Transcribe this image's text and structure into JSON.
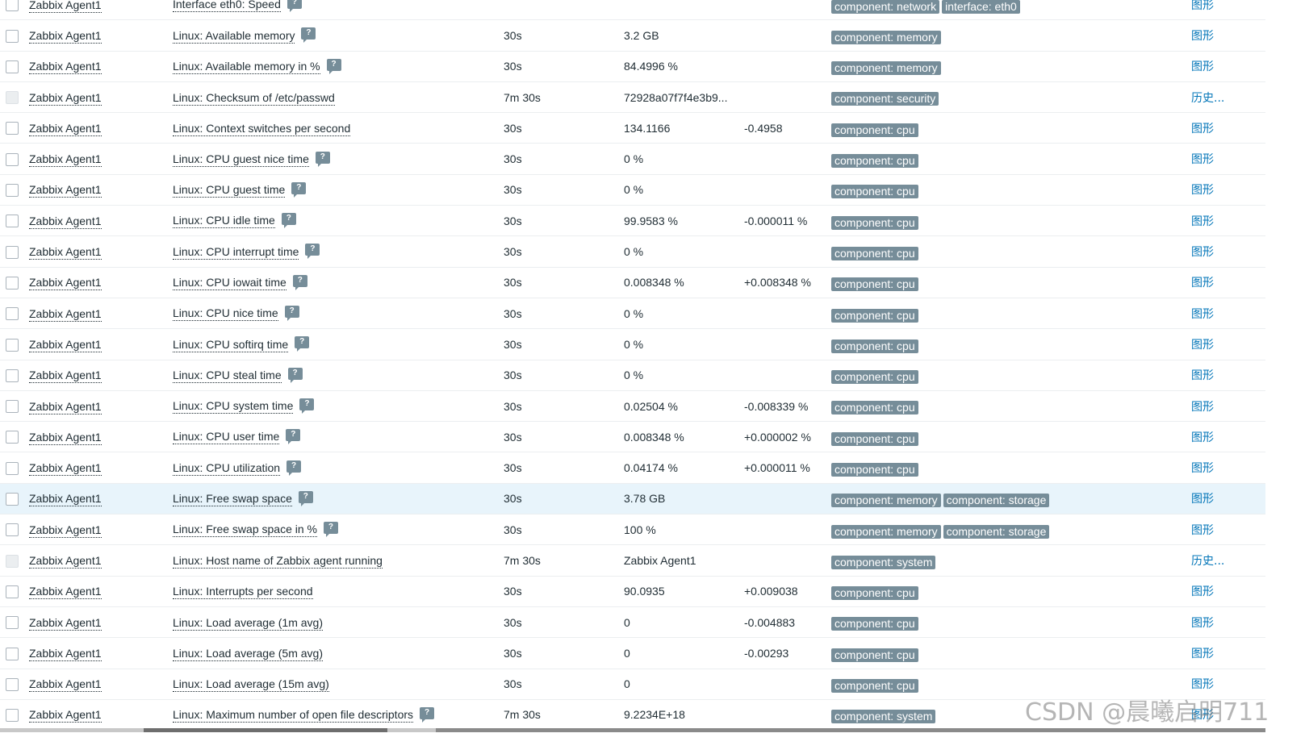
{
  "rows": [
    {
      "host": "Zabbix Agent1",
      "name": "Interface eth0: Speed",
      "hint": true,
      "interval": "",
      "last_value": "",
      "change": "",
      "tags": [
        "component: network",
        "interface: eth0"
      ],
      "action": "图形",
      "disabled": false,
      "highlight": false
    },
    {
      "host": "Zabbix Agent1",
      "name": "Linux: Available memory",
      "hint": true,
      "interval": "30s",
      "last_value": "3.2 GB",
      "change": "",
      "tags": [
        "component: memory"
      ],
      "action": "图形",
      "disabled": false,
      "highlight": false
    },
    {
      "host": "Zabbix Agent1",
      "name": "Linux: Available memory in %",
      "hint": true,
      "interval": "30s",
      "last_value": "84.4996 %",
      "change": "",
      "tags": [
        "component: memory"
      ],
      "action": "图形",
      "disabled": false,
      "highlight": false
    },
    {
      "host": "Zabbix Agent1",
      "name": "Linux: Checksum of /etc/passwd",
      "hint": false,
      "interval": "7m 30s",
      "last_value": "72928a07f7f4e3b9...",
      "change": "",
      "tags": [
        "component: security"
      ],
      "action": "历史...",
      "disabled": true,
      "highlight": false
    },
    {
      "host": "Zabbix Agent1",
      "name": "Linux: Context switches per second",
      "hint": false,
      "interval": "30s",
      "last_value": "134.1166",
      "change": "-0.4958",
      "tags": [
        "component: cpu"
      ],
      "action": "图形",
      "disabled": false,
      "highlight": false
    },
    {
      "host": "Zabbix Agent1",
      "name": "Linux: CPU guest nice time",
      "hint": true,
      "interval": "30s",
      "last_value": "0 %",
      "change": "",
      "tags": [
        "component: cpu"
      ],
      "action": "图形",
      "disabled": false,
      "highlight": false
    },
    {
      "host": "Zabbix Agent1",
      "name": "Linux: CPU guest time",
      "hint": true,
      "interval": "30s",
      "last_value": "0 %",
      "change": "",
      "tags": [
        "component: cpu"
      ],
      "action": "图形",
      "disabled": false,
      "highlight": false
    },
    {
      "host": "Zabbix Agent1",
      "name": "Linux: CPU idle time",
      "hint": true,
      "interval": "30s",
      "last_value": "99.9583 %",
      "change": "-0.000011 %",
      "tags": [
        "component: cpu"
      ],
      "action": "图形",
      "disabled": false,
      "highlight": false
    },
    {
      "host": "Zabbix Agent1",
      "name": "Linux: CPU interrupt time",
      "hint": true,
      "interval": "30s",
      "last_value": "0 %",
      "change": "",
      "tags": [
        "component: cpu"
      ],
      "action": "图形",
      "disabled": false,
      "highlight": false
    },
    {
      "host": "Zabbix Agent1",
      "name": "Linux: CPU iowait time",
      "hint": true,
      "interval": "30s",
      "last_value": "0.008348 %",
      "change": "+0.008348 %",
      "tags": [
        "component: cpu"
      ],
      "action": "图形",
      "disabled": false,
      "highlight": false
    },
    {
      "host": "Zabbix Agent1",
      "name": "Linux: CPU nice time",
      "hint": true,
      "interval": "30s",
      "last_value": "0 %",
      "change": "",
      "tags": [
        "component: cpu"
      ],
      "action": "图形",
      "disabled": false,
      "highlight": false
    },
    {
      "host": "Zabbix Agent1",
      "name": "Linux: CPU softirq time",
      "hint": true,
      "interval": "30s",
      "last_value": "0 %",
      "change": "",
      "tags": [
        "component: cpu"
      ],
      "action": "图形",
      "disabled": false,
      "highlight": false
    },
    {
      "host": "Zabbix Agent1",
      "name": "Linux: CPU steal time",
      "hint": true,
      "interval": "30s",
      "last_value": "0 %",
      "change": "",
      "tags": [
        "component: cpu"
      ],
      "action": "图形",
      "disabled": false,
      "highlight": false
    },
    {
      "host": "Zabbix Agent1",
      "name": "Linux: CPU system time",
      "hint": true,
      "interval": "30s",
      "last_value": "0.02504 %",
      "change": "-0.008339 %",
      "tags": [
        "component: cpu"
      ],
      "action": "图形",
      "disabled": false,
      "highlight": false
    },
    {
      "host": "Zabbix Agent1",
      "name": "Linux: CPU user time",
      "hint": true,
      "interval": "30s",
      "last_value": "0.008348 %",
      "change": "+0.000002 %",
      "tags": [
        "component: cpu"
      ],
      "action": "图形",
      "disabled": false,
      "highlight": false
    },
    {
      "host": "Zabbix Agent1",
      "name": "Linux: CPU utilization",
      "hint": true,
      "interval": "30s",
      "last_value": "0.04174 %",
      "change": "+0.000011 %",
      "tags": [
        "component: cpu"
      ],
      "action": "图形",
      "disabled": false,
      "highlight": false
    },
    {
      "host": "Zabbix Agent1",
      "name": "Linux: Free swap space",
      "hint": true,
      "interval": "30s",
      "last_value": "3.78 GB",
      "change": "",
      "tags": [
        "component: memory",
        "component: storage"
      ],
      "action": "图形",
      "disabled": false,
      "highlight": true
    },
    {
      "host": "Zabbix Agent1",
      "name": "Linux: Free swap space in %",
      "hint": true,
      "interval": "30s",
      "last_value": "100 %",
      "change": "",
      "tags": [
        "component: memory",
        "component: storage"
      ],
      "action": "图形",
      "disabled": false,
      "highlight": false
    },
    {
      "host": "Zabbix Agent1",
      "name": "Linux: Host name of Zabbix agent running",
      "hint": false,
      "interval": "7m 30s",
      "last_value": "Zabbix Agent1",
      "change": "",
      "tags": [
        "component: system"
      ],
      "action": "历史...",
      "disabled": true,
      "highlight": false
    },
    {
      "host": "Zabbix Agent1",
      "name": "Linux: Interrupts per second",
      "hint": false,
      "interval": "30s",
      "last_value": "90.0935",
      "change": "+0.009038",
      "tags": [
        "component: cpu"
      ],
      "action": "图形",
      "disabled": false,
      "highlight": false
    },
    {
      "host": "Zabbix Agent1",
      "name": "Linux: Load average (1m avg)",
      "hint": false,
      "interval": "30s",
      "last_value": "0",
      "change": "-0.004883",
      "tags": [
        "component: cpu"
      ],
      "action": "图形",
      "disabled": false,
      "highlight": false
    },
    {
      "host": "Zabbix Agent1",
      "name": "Linux: Load average (5m avg)",
      "hint": false,
      "interval": "30s",
      "last_value": "0",
      "change": "-0.00293",
      "tags": [
        "component: cpu"
      ],
      "action": "图形",
      "disabled": false,
      "highlight": false
    },
    {
      "host": "Zabbix Agent1",
      "name": "Linux: Load average (15m avg)",
      "hint": false,
      "interval": "30s",
      "last_value": "0",
      "change": "",
      "tags": [
        "component: cpu"
      ],
      "action": "图形",
      "disabled": false,
      "highlight": false
    },
    {
      "host": "Zabbix Agent1",
      "name": "Linux: Maximum number of open file descriptors",
      "hint": true,
      "interval": "7m 30s",
      "last_value": "9.2234E+18",
      "change": "",
      "tags": [
        "component: system"
      ],
      "action": "图形",
      "disabled": false,
      "highlight": false
    }
  ],
  "hint_glyph": "?",
  "watermark": "CSDN @晨曦启明711",
  "colors": {
    "tag_bg": "#768d99",
    "link_action": "#0275b8",
    "row_highlight": "#e8f4fb"
  }
}
